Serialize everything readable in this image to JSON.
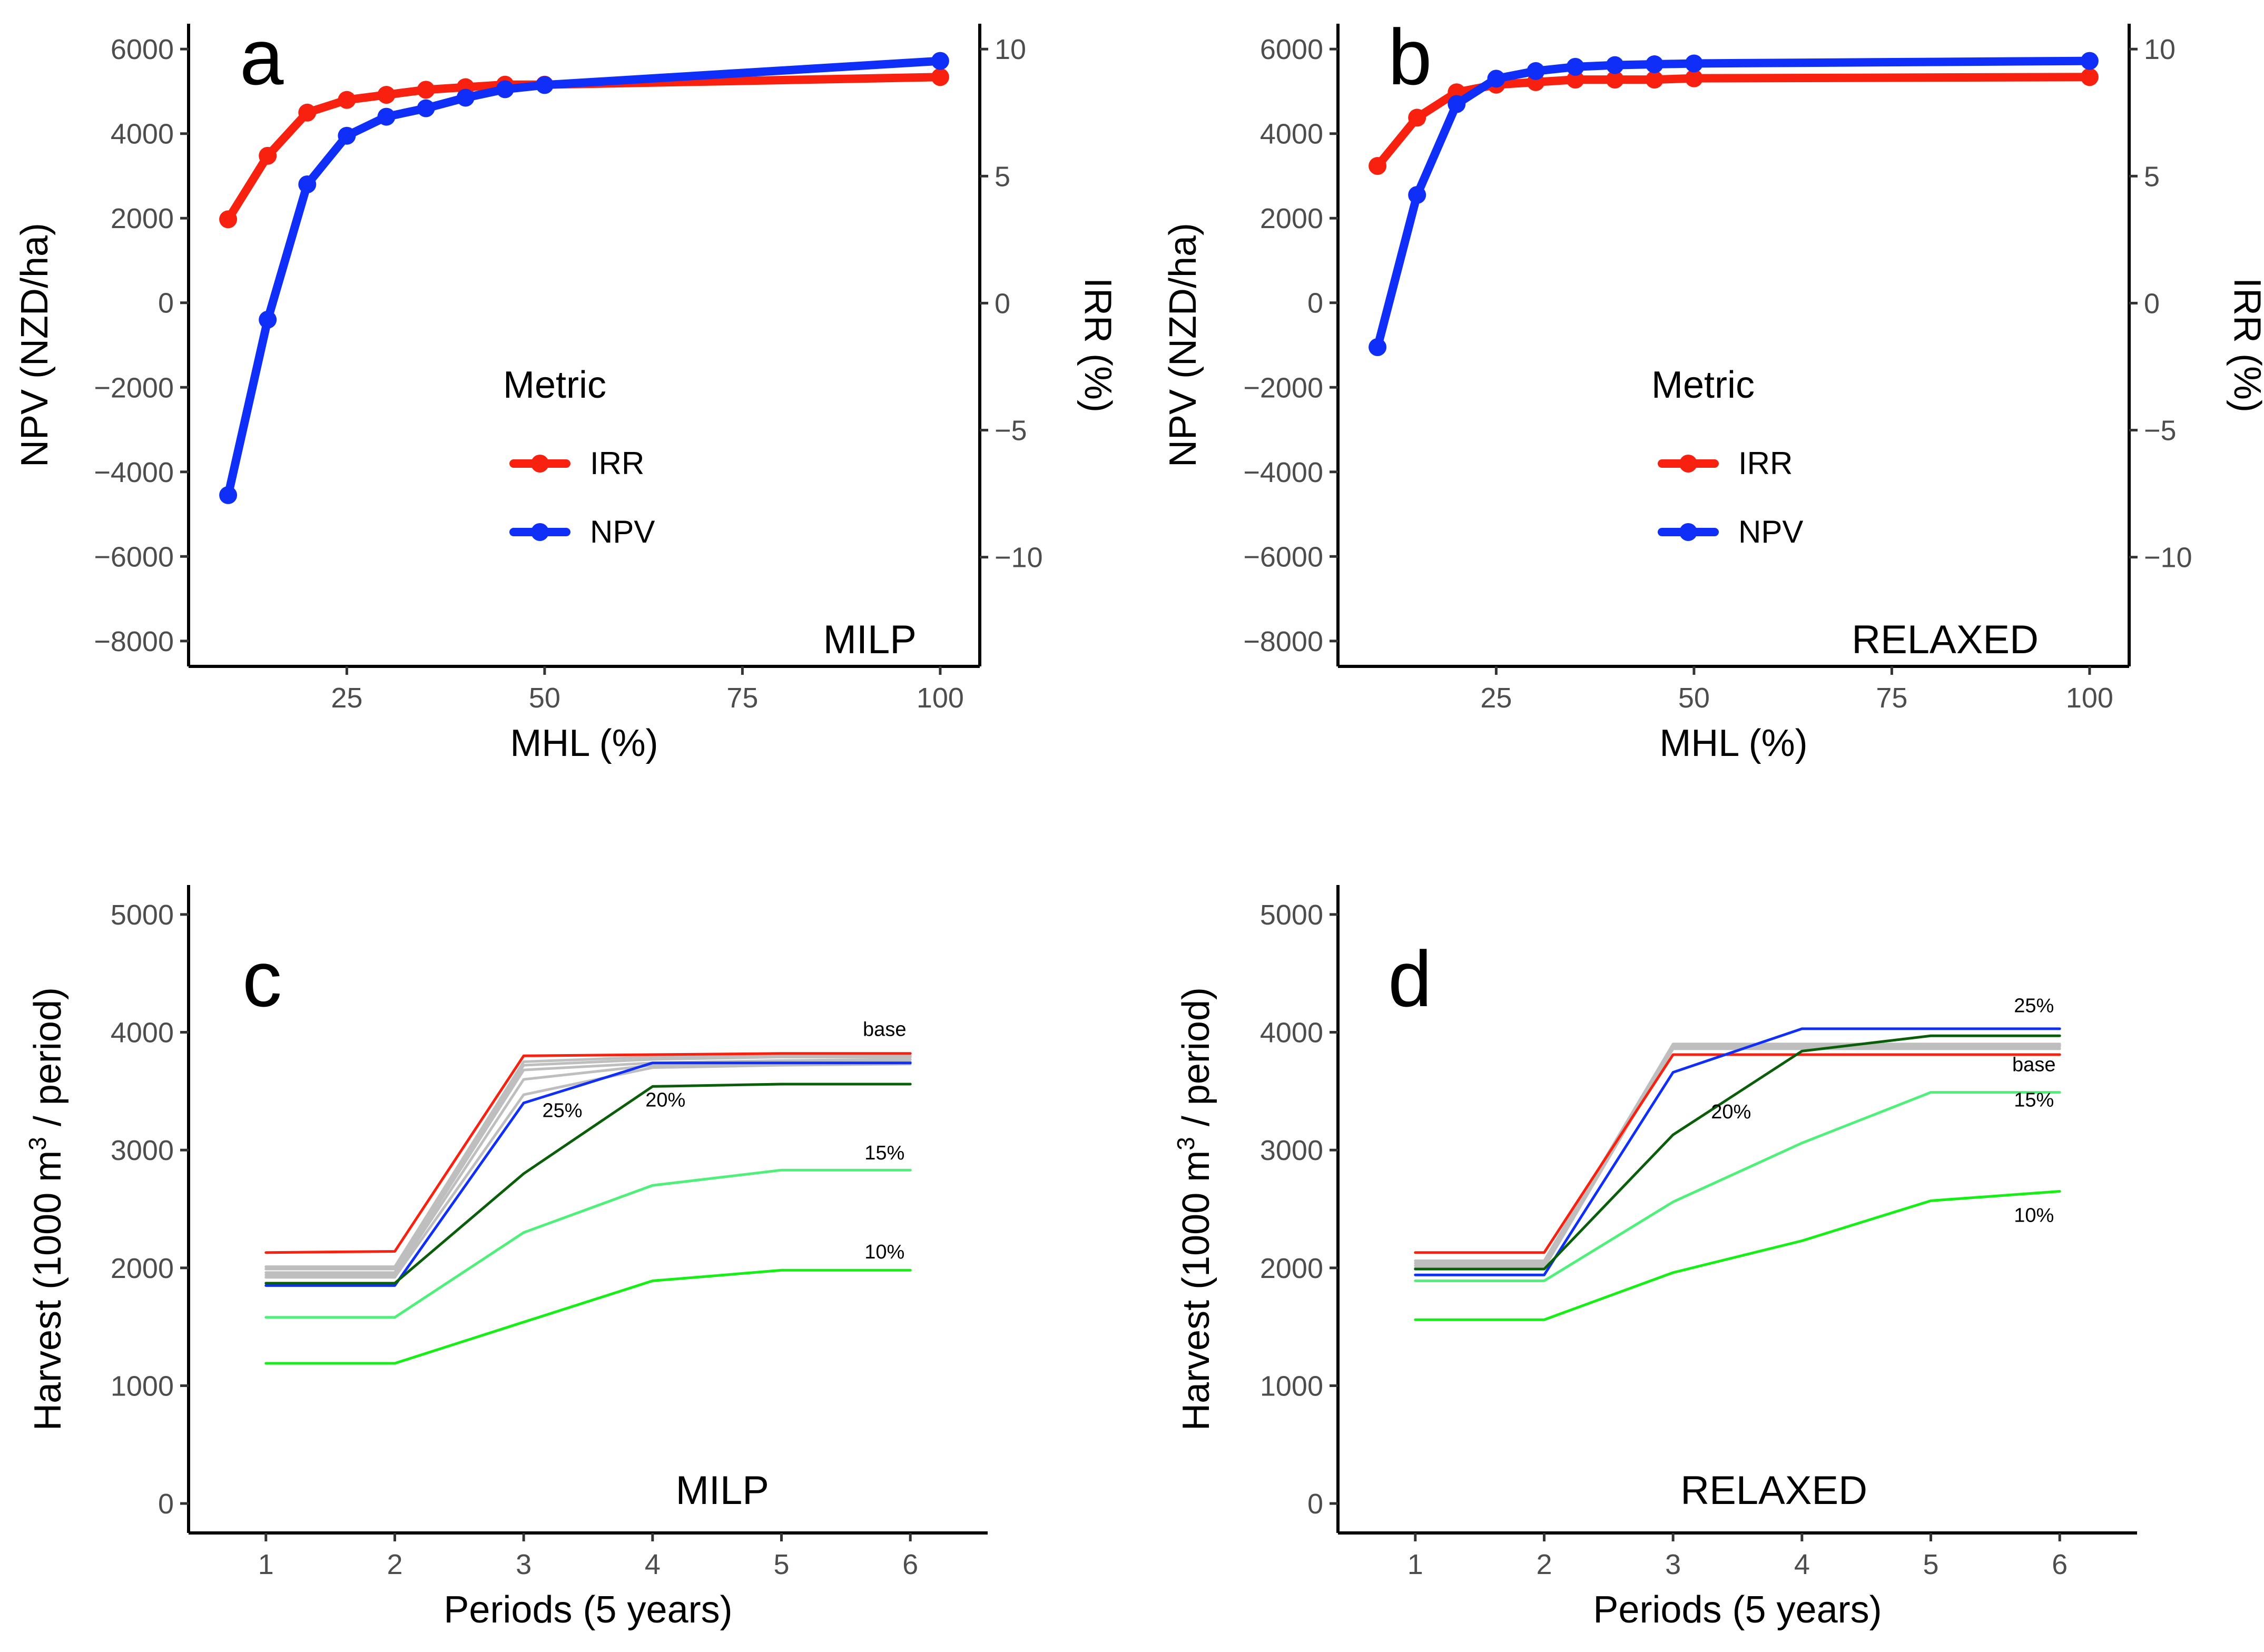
{
  "chart_data": [
    {
      "id": "a",
      "type": "line",
      "panel_label": "a",
      "tag": "MILP",
      "xlabel": "MHL (%)",
      "ylabel": "NPV (NZD/ha)",
      "ylabel_right": "IRR (%)",
      "xlim": [
        5,
        105
      ],
      "ylim": [
        -8600,
        6600
      ],
      "y2lim": [
        -14.3,
        11
      ],
      "xticks": [
        25,
        50,
        75,
        100
      ],
      "yticks": [
        -8000,
        -6000,
        -4000,
        -2000,
        0,
        2000,
        4000,
        6000
      ],
      "y2ticks": [
        -10,
        -5,
        0,
        5,
        10
      ],
      "ytick_labels": [
        "−8000",
        "−6000",
        "−4000",
        "−2000",
        "0",
        "2000",
        "4000",
        "6000"
      ],
      "y2tick_labels": [
        "−10",
        "−5",
        "0",
        "5",
        "10"
      ],
      "legend": {
        "title": "Metric",
        "position": "center"
      },
      "series": [
        {
          "name": "IRR",
          "color": "#f8210f",
          "axis": "right",
          "x": [
            10,
            15,
            20,
            25,
            30,
            35,
            40,
            45,
            50,
            100
          ],
          "values": [
            3.3,
            5.8,
            7.5,
            8.0,
            8.2,
            8.4,
            8.5,
            8.6,
            8.6,
            8.9
          ]
        },
        {
          "name": "NPV",
          "color": "#0f2ff8",
          "axis": "left",
          "x": [
            10,
            15,
            20,
            25,
            30,
            35,
            40,
            45,
            50,
            100
          ],
          "values": [
            -4550,
            -400,
            2800,
            3950,
            4400,
            4600,
            4850,
            5050,
            5150,
            5720
          ]
        }
      ]
    },
    {
      "id": "b",
      "type": "line",
      "panel_label": "b",
      "tag": "RELAXED",
      "xlabel": "MHL (%)",
      "ylabel": "NPV (NZD/ha)",
      "ylabel_right": "IRR (%)",
      "xlim": [
        5,
        105
      ],
      "ylim": [
        -8600,
        6600
      ],
      "y2lim": [
        -14.3,
        11
      ],
      "xticks": [
        25,
        50,
        75,
        100
      ],
      "yticks": [
        -8000,
        -6000,
        -4000,
        -2000,
        0,
        2000,
        4000,
        6000
      ],
      "y2ticks": [
        -10,
        -5,
        0,
        5,
        10
      ],
      "ytick_labels": [
        "−8000",
        "−6000",
        "−4000",
        "−2000",
        "0",
        "2000",
        "4000",
        "6000"
      ],
      "y2tick_labels": [
        "−10",
        "−5",
        "0",
        "5",
        "10"
      ],
      "legend": {
        "title": "Metric",
        "position": "center"
      },
      "series": [
        {
          "name": "IRR",
          "color": "#f8210f",
          "axis": "right",
          "x": [
            10,
            15,
            20,
            25,
            30,
            35,
            40,
            45,
            50,
            100
          ],
          "values": [
            5.4,
            7.3,
            8.3,
            8.6,
            8.7,
            8.8,
            8.8,
            8.8,
            8.85,
            8.9
          ]
        },
        {
          "name": "NPV",
          "color": "#0f2ff8",
          "axis": "left",
          "x": [
            10,
            15,
            20,
            25,
            30,
            35,
            40,
            45,
            50,
            100
          ],
          "values": [
            -1050,
            2550,
            4700,
            5300,
            5480,
            5580,
            5620,
            5640,
            5660,
            5720
          ]
        }
      ]
    },
    {
      "id": "c",
      "type": "line",
      "panel_label": "c",
      "tag": "MILP",
      "xlabel": "Periods (5 years)",
      "ylabel_parts": [
        "Harvest (1000 m",
        "3",
        " / period)"
      ],
      "xlim": [
        0.4,
        6.6
      ],
      "ylim": [
        -250,
        5250
      ],
      "xticks": [
        1,
        2,
        3,
        4,
        5,
        6
      ],
      "yticks": [
        0,
        1000,
        2000,
        3000,
        4000,
        5000
      ],
      "x": [
        1,
        2,
        3,
        4,
        5,
        6
      ],
      "series": [
        {
          "name": "grey-1",
          "color": "#bebebe",
          "values": [
            2010,
            2010,
            3750,
            3790,
            3800,
            3800
          ]
        },
        {
          "name": "grey-2",
          "color": "#bebebe",
          "values": [
            1990,
            1990,
            3720,
            3770,
            3790,
            3790
          ]
        },
        {
          "name": "grey-3",
          "color": "#bebebe",
          "values": [
            1960,
            1960,
            3680,
            3740,
            3760,
            3770
          ]
        },
        {
          "name": "grey-4",
          "color": "#bebebe",
          "values": [
            1940,
            1940,
            3600,
            3720,
            3740,
            3750
          ]
        },
        {
          "name": "grey-5",
          "color": "#bebebe",
          "values": [
            1920,
            1920,
            3470,
            3700,
            3720,
            3730
          ]
        },
        {
          "name": "base",
          "color": "#f8210f",
          "values": [
            2130,
            2140,
            3800,
            3810,
            3820,
            3820
          ]
        },
        {
          "name": "25%",
          "color": "#0f2ff8",
          "values": [
            1850,
            1850,
            3400,
            3740,
            3740,
            3740
          ]
        },
        {
          "name": "20%",
          "color": "#0a5e0a",
          "values": [
            1870,
            1870,
            2800,
            3540,
            3560,
            3560
          ]
        },
        {
          "name": "15%",
          "color": "#4ef07a",
          "values": [
            1580,
            1580,
            2300,
            2700,
            2830,
            2830
          ]
        },
        {
          "name": "10%",
          "color": "#14f014",
          "values": [
            1190,
            1190,
            1540,
            1890,
            1980,
            1980
          ]
        }
      ],
      "line_labels": [
        {
          "text": "base",
          "x": 5.8,
          "y": 3970
        },
        {
          "text": "25%",
          "x": 3.3,
          "y": 3280
        },
        {
          "text": "20%",
          "x": 4.1,
          "y": 3370
        },
        {
          "text": "15%",
          "x": 5.8,
          "y": 2920
        },
        {
          "text": "10%",
          "x": 5.8,
          "y": 2080
        }
      ]
    },
    {
      "id": "d",
      "type": "line",
      "panel_label": "d",
      "tag": "RELAXED",
      "xlabel": "Periods (5 years)",
      "ylabel_parts": [
        "Harvest (1000 m",
        "3",
        " / period)"
      ],
      "xlim": [
        0.4,
        6.6
      ],
      "ylim": [
        -250,
        5250
      ],
      "xticks": [
        1,
        2,
        3,
        4,
        5,
        6
      ],
      "yticks": [
        0,
        1000,
        2000,
        3000,
        4000,
        5000
      ],
      "x": [
        1,
        2,
        3,
        4,
        5,
        6
      ],
      "series": [
        {
          "name": "grey-1",
          "color": "#bebebe",
          "values": [
            2060,
            2060,
            3900,
            3900,
            3900,
            3900
          ]
        },
        {
          "name": "grey-2",
          "color": "#bebebe",
          "values": [
            2040,
            2040,
            3890,
            3890,
            3890,
            3890
          ]
        },
        {
          "name": "grey-3",
          "color": "#bebebe",
          "values": [
            2020,
            2020,
            3880,
            3880,
            3880,
            3880
          ]
        },
        {
          "name": "grey-4",
          "color": "#bebebe",
          "values": [
            2000,
            2000,
            3860,
            3860,
            3860,
            3860
          ]
        },
        {
          "name": "base",
          "color": "#f8210f",
          "values": [
            2130,
            2130,
            3810,
            3810,
            3810,
            3810
          ]
        },
        {
          "name": "25%",
          "color": "#0f2ff8",
          "values": [
            1940,
            1940,
            3660,
            4030,
            4030,
            4030
          ]
        },
        {
          "name": "20%",
          "color": "#0a5e0a",
          "values": [
            1990,
            1990,
            3130,
            3840,
            3970,
            3970
          ]
        },
        {
          "name": "15%",
          "color": "#4ef07a",
          "values": [
            1890,
            1890,
            2560,
            3060,
            3490,
            3490
          ]
        },
        {
          "name": "10%",
          "color": "#14f014",
          "values": [
            1560,
            1560,
            1960,
            2230,
            2570,
            2650
          ]
        }
      ],
      "line_labels": [
        {
          "text": "25%",
          "x": 5.8,
          "y": 4170
        },
        {
          "text": "base",
          "x": 5.8,
          "y": 3670
        },
        {
          "text": "20%",
          "x": 3.45,
          "y": 3270
        },
        {
          "text": "15%",
          "x": 5.8,
          "y": 3370
        },
        {
          "text": "10%",
          "x": 5.8,
          "y": 2390
        }
      ]
    }
  ]
}
